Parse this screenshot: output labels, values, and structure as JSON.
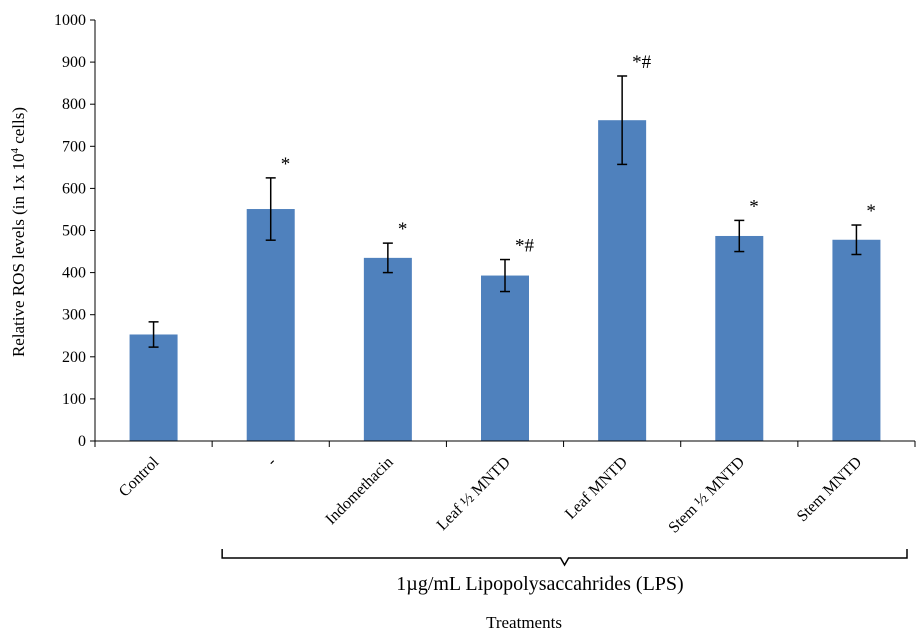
{
  "chart_data": {
    "type": "bar",
    "categories": [
      "Control",
      "-",
      "Indomethacin",
      "Leaf ½ MNTD",
      "Leaf MNTD",
      "Stem ½ MNTD",
      "Stem MNTD"
    ],
    "values": [
      253,
      551,
      435,
      393,
      762,
      487,
      478
    ],
    "errors": [
      30,
      74,
      35,
      38,
      105,
      37,
      35
    ],
    "significance": [
      "",
      "*",
      "*",
      "*#",
      "*#",
      "*",
      "*"
    ],
    "ylim": [
      0,
      1000
    ],
    "yticks": [
      0,
      100,
      200,
      300,
      400,
      500,
      600,
      700,
      800,
      900,
      1000
    ],
    "ylabel_main": "Relative ROS levels (in 1x 10",
    "ylabel_sup": "4",
    "ylabel_end": " cells)",
    "xlabel": "Treatments",
    "group_label": "1µg/mL Lipopolysaccahrides (LPS)",
    "bar_color": "#4f81bd"
  }
}
